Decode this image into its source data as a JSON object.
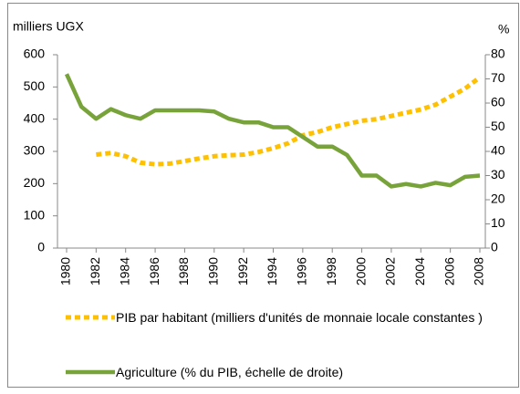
{
  "chart_data": {
    "type": "line",
    "y_label": "milliers UGX",
    "y2_label": "%",
    "x": [
      1980,
      1981,
      1982,
      1983,
      1984,
      1985,
      1986,
      1987,
      1988,
      1989,
      1990,
      1991,
      1992,
      1993,
      1994,
      1995,
      1996,
      1997,
      1998,
      1999,
      2000,
      2001,
      2002,
      2003,
      2004,
      2005,
      2006,
      2007,
      2008
    ],
    "xlim": [
      1980,
      2008
    ],
    "xticks": [
      1980,
      1982,
      1984,
      1986,
      1988,
      1990,
      1992,
      1994,
      1996,
      1998,
      2000,
      2002,
      2004,
      2006,
      2008
    ],
    "ylim": [
      0,
      600
    ],
    "yticks": [
      0,
      100,
      200,
      300,
      400,
      500,
      600
    ],
    "y2lim": [
      0,
      80
    ],
    "y2ticks": [
      0,
      10,
      20,
      30,
      40,
      50,
      60,
      70,
      80
    ],
    "grid": false,
    "series": [
      {
        "name": "PIB par habitant (milliers d'unités de monnaie locale constantes )",
        "color": "#ffc000",
        "style": "dotted",
        "values": [
          null,
          null,
          290,
          295,
          285,
          265,
          260,
          262,
          270,
          278,
          285,
          288,
          290,
          298,
          310,
          325,
          350,
          360,
          375,
          385,
          395,
          400,
          410,
          420,
          430,
          445,
          470,
          495,
          530
        ]
      },
      {
        "name": "Agriculture (% du PIB, échelle de droite)",
        "color": "#77a33a",
        "style": "solid",
        "axis": "y2",
        "values": [
          72,
          58.5,
          53.5,
          57.5,
          55,
          53.5,
          57,
          57,
          57,
          57,
          56.5,
          53.5,
          52,
          52,
          50,
          50,
          46,
          42,
          42,
          38.5,
          30,
          30,
          25.5,
          26.5,
          25.5,
          27,
          26,
          29.5,
          30
        ]
      }
    ]
  }
}
